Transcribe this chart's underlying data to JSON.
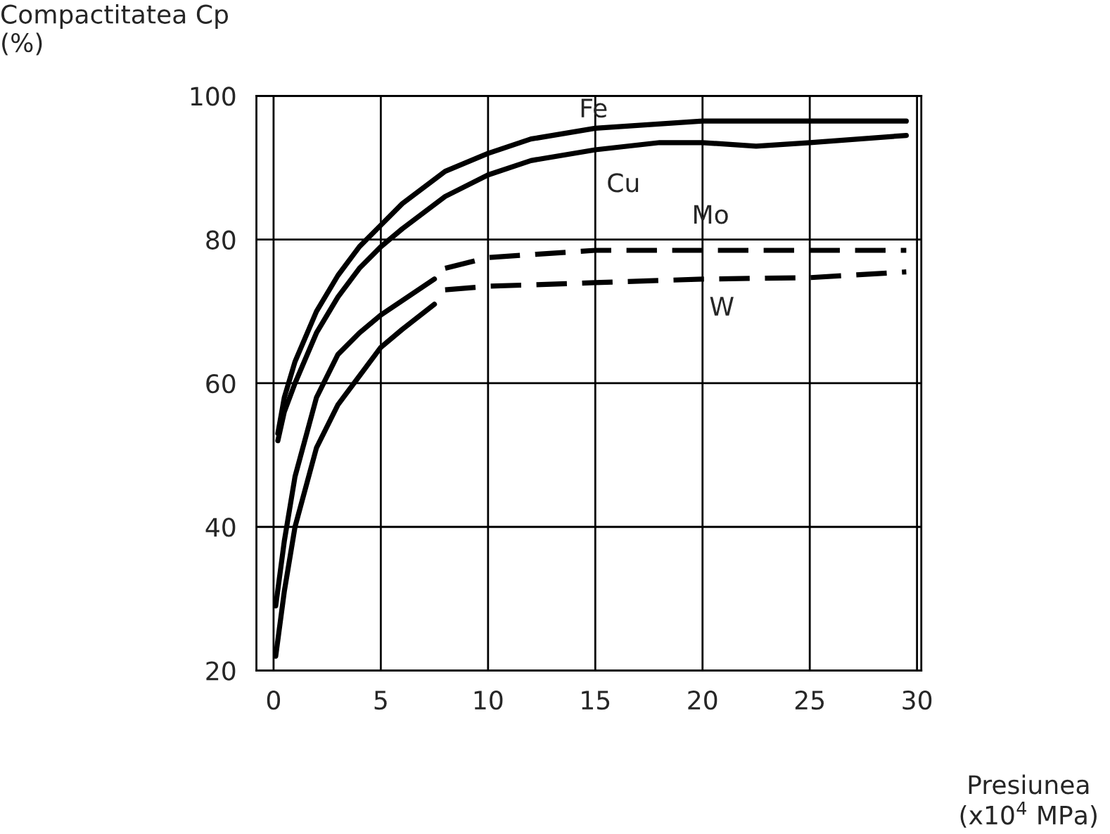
{
  "chart_data": {
    "type": "line",
    "xlabel": "Presiunea\n(x10$^{4}$ MPa)",
    "ylabel": "Compactitatea Cp\n(%)",
    "xlim": [
      -0.8,
      30.2
    ],
    "ylim": [
      20,
      100
    ],
    "xticks": [
      0,
      5,
      10,
      15,
      20,
      25,
      30
    ],
    "yticks": [
      20,
      40,
      60,
      80,
      100
    ],
    "grid": true,
    "marker": "none",
    "series": [
      {
        "color": "#000000",
        "line_style": "solid",
        "x": [
          0.2,
          0.5,
          1,
          2,
          3,
          4,
          5,
          6,
          8,
          10,
          12,
          15,
          20,
          25,
          29.5
        ],
        "values": [
          53,
          58,
          63,
          70,
          75,
          79,
          82,
          85,
          89.5,
          92,
          94,
          95.5,
          96.5,
          96.5,
          96.5
        ]
      },
      {
        "color": "#000000",
        "line_style": "solid",
        "x": [
          0.2,
          0.5,
          1,
          2,
          3,
          4,
          5,
          6,
          8,
          10,
          12,
          15,
          18,
          20,
          22.5,
          25,
          29.5
        ],
        "values": [
          52,
          56,
          60,
          67,
          72,
          76,
          79,
          81.5,
          86,
          89,
          91,
          92.5,
          93.5,
          93.5,
          93,
          93.5,
          94.5
        ]
      },
      {
        "color": "#000000",
        "line_style": "solid",
        "x": [
          0.1,
          0.5,
          1,
          2,
          3,
          4,
          5,
          6,
          7.5
        ],
        "values": [
          29,
          38,
          47,
          58,
          64,
          67,
          69.5,
          71.5,
          74.5
        ]
      },
      {
        "color": "#000000",
        "line_style": "dashed",
        "x": [
          8,
          10,
          15,
          20,
          25,
          29.5
        ],
        "values": [
          76,
          77.5,
          78.5,
          78.5,
          78.5,
          78.5
        ]
      },
      {
        "color": "#000000",
        "line_style": "solid",
        "x": [
          0.1,
          0.5,
          1,
          2,
          3,
          4,
          5,
          6,
          7.5
        ],
        "values": [
          22,
          31,
          40,
          51,
          57,
          61,
          65,
          67.5,
          71
        ]
      },
      {
        "color": "#000000",
        "line_style": "dashed",
        "x": [
          8,
          10,
          15,
          20,
          25,
          29.5
        ],
        "values": [
          73,
          73.5,
          74,
          74.5,
          74.7,
          75.5
        ]
      }
    ],
    "annotations": [
      "Fe",
      "Cu",
      "Mo",
      "W"
    ]
  }
}
